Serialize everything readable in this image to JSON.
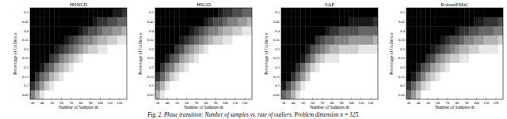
{
  "chart_data": [
    {
      "type": "heatmap",
      "title": "HSNLD",
      "x_label": "Number of Samples m",
      "y_label": "Percentage of Outliers α",
      "x": [
        30,
        35,
        40,
        45,
        50,
        55,
        60,
        65,
        70,
        75,
        80,
        85,
        90,
        95,
        100,
        105,
        110,
        115,
        120,
        125
      ],
      "y": [
        0.05,
        0.1,
        0.15,
        0.2,
        0.25,
        0.3,
        0.35,
        0.4,
        0.45,
        0.5
      ],
      "xlim": [
        27.5,
        127.5
      ],
      "ylim": [
        0.025,
        0.525
      ],
      "zlim": [
        0,
        1
      ],
      "xticks": [
        30,
        40,
        50,
        60,
        70,
        80,
        90,
        100,
        110,
        120
      ],
      "yticks": [
        0.05,
        0.1,
        0.15,
        0.2,
        0.25,
        0.3,
        0.35,
        0.4,
        0.45,
        0.5
      ],
      "cells": [
        [
          0.5,
          0.7,
          0.9,
          1,
          1,
          1,
          1,
          1,
          1,
          1,
          1,
          1,
          1,
          1,
          1,
          1,
          1,
          1,
          1,
          1
        ],
        [
          0.2,
          0.4,
          0.6,
          0.8,
          0.9,
          1,
          1,
          1,
          1,
          1,
          1,
          1,
          1,
          1,
          1,
          1,
          1,
          1,
          1,
          1
        ],
        [
          0,
          0.2,
          0.4,
          0.5,
          0.7,
          0.8,
          0.9,
          1,
          1,
          1,
          1,
          1,
          1,
          1,
          1,
          1,
          1,
          1,
          1,
          1
        ],
        [
          0,
          0,
          0.1,
          0.3,
          0.4,
          0.6,
          0.7,
          0.8,
          0.9,
          1,
          1,
          1,
          1,
          1,
          1,
          1,
          1,
          1,
          1,
          1
        ],
        [
          0,
          0,
          0,
          0,
          0.2,
          0.3,
          0.5,
          0.6,
          0.7,
          0.8,
          0.9,
          1,
          1,
          1,
          1,
          1,
          1,
          1,
          1,
          1
        ],
        [
          0,
          0,
          0,
          0,
          0,
          0.1,
          0.2,
          0.3,
          0.4,
          0.5,
          0.6,
          0.7,
          0.8,
          0.8,
          0.9,
          0.9,
          1,
          1,
          1,
          1
        ],
        [
          0,
          0,
          0,
          0,
          0,
          0,
          0,
          0.1,
          0.2,
          0.3,
          0.4,
          0.5,
          0.5,
          0.6,
          0.7,
          0.7,
          0.8,
          0.8,
          0.9,
          0.9
        ],
        [
          0,
          0,
          0,
          0,
          0,
          0,
          0,
          0,
          0,
          0,
          0.1,
          0.2,
          0.3,
          0.3,
          0.4,
          0.5,
          0.5,
          0.6,
          0.6,
          0.7
        ],
        [
          0,
          0,
          0,
          0,
          0,
          0,
          0,
          0,
          0,
          0,
          0,
          0,
          0,
          0.1,
          0.2,
          0.2,
          0.3,
          0.3,
          0.4,
          0.4
        ],
        [
          0,
          0,
          0,
          0,
          0,
          0,
          0,
          0,
          0,
          0,
          0,
          0,
          0,
          0,
          0,
          0,
          0,
          0.1,
          0.1,
          0.2
        ]
      ]
    },
    {
      "type": "heatmap",
      "title": "HSGD",
      "x_label": "Number of Samples m",
      "y_label": "Percentage of Outliers α",
      "x": [
        30,
        35,
        40,
        45,
        50,
        55,
        60,
        65,
        70,
        75,
        80,
        85,
        90,
        95,
        100,
        105,
        110,
        115,
        120,
        125
      ],
      "y": [
        0.05,
        0.1,
        0.15,
        0.2,
        0.25,
        0.3,
        0.35,
        0.4,
        0.45,
        0.5
      ],
      "xlim": [
        27.5,
        127.5
      ],
      "ylim": [
        0.025,
        0.525
      ],
      "zlim": [
        0,
        1
      ],
      "xticks": [
        30,
        40,
        50,
        60,
        70,
        80,
        90,
        100,
        110,
        120
      ],
      "yticks": [
        0.05,
        0.1,
        0.15,
        0.2,
        0.25,
        0.3,
        0.35,
        0.4,
        0.45,
        0.5
      ],
      "cells": [
        [
          0.7,
          0.9,
          1,
          1,
          1,
          1,
          1,
          1,
          1,
          1,
          1,
          1,
          1,
          1,
          1,
          1,
          1,
          1,
          1,
          1
        ],
        [
          0.5,
          0.7,
          0.9,
          1,
          1,
          1,
          1,
          1,
          1,
          1,
          1,
          1,
          1,
          1,
          1,
          1,
          1,
          1,
          1,
          1
        ],
        [
          0.2,
          0.4,
          0.6,
          0.8,
          0.9,
          1,
          1,
          1,
          1,
          1,
          1,
          1,
          1,
          1,
          1,
          1,
          1,
          1,
          1,
          1
        ],
        [
          0,
          0.2,
          0.4,
          0.5,
          0.7,
          0.8,
          0.9,
          1,
          1,
          1,
          1,
          1,
          1,
          1,
          1,
          1,
          1,
          1,
          1,
          1
        ],
        [
          0,
          0,
          0.1,
          0.3,
          0.4,
          0.6,
          0.7,
          0.8,
          0.9,
          1,
          1,
          1,
          1,
          1,
          1,
          1,
          1,
          1,
          1,
          1
        ],
        [
          0,
          0,
          0,
          0,
          0.2,
          0.3,
          0.5,
          0.6,
          0.7,
          0.8,
          0.9,
          1,
          1,
          1,
          1,
          1,
          1,
          1,
          1,
          1
        ],
        [
          0,
          0,
          0,
          0,
          0,
          0.1,
          0.2,
          0.3,
          0.4,
          0.5,
          0.6,
          0.7,
          0.8,
          0.8,
          0.9,
          0.9,
          1,
          1,
          1,
          1
        ],
        [
          0,
          0,
          0,
          0,
          0,
          0,
          0,
          0.1,
          0.2,
          0.3,
          0.4,
          0.5,
          0.5,
          0.6,
          0.7,
          0.7,
          0.8,
          0.8,
          0.9,
          0.9
        ],
        [
          0,
          0,
          0,
          0,
          0,
          0,
          0,
          0,
          0,
          0,
          0.1,
          0.2,
          0.3,
          0.3,
          0.4,
          0.5,
          0.5,
          0.6,
          0.6,
          0.7
        ],
        [
          0,
          0,
          0,
          0,
          0,
          0,
          0,
          0,
          0,
          0,
          0,
          0,
          0,
          0.1,
          0.2,
          0.2,
          0.3,
          0.3,
          0.4,
          0.4
        ]
      ]
    },
    {
      "type": "heatmap",
      "title": "SAP",
      "x_label": "Number of Samples m",
      "y_label": "Percentage of Outliers α",
      "x": [
        30,
        35,
        40,
        45,
        50,
        55,
        60,
        65,
        70,
        75,
        80,
        85,
        90,
        95,
        100,
        105,
        110,
        115,
        120,
        125
      ],
      "y": [
        0.05,
        0.1,
        0.15,
        0.2,
        0.25,
        0.3,
        0.35,
        0.4,
        0.45,
        0.5
      ],
      "xlim": [
        27.5,
        127.5
      ],
      "ylim": [
        0.025,
        0.525
      ],
      "zlim": [
        0,
        1
      ],
      "xticks": [
        30,
        40,
        50,
        60,
        70,
        80,
        90,
        100,
        110,
        120
      ],
      "yticks": [
        0.05,
        0.1,
        0.15,
        0.2,
        0.25,
        0.3,
        0.35,
        0.4,
        0.45,
        0.5
      ],
      "cells": [
        [
          0.4,
          0.5,
          0.7,
          0.9,
          1,
          1,
          1,
          1,
          1,
          1,
          1,
          1,
          1,
          1,
          1,
          1,
          1,
          1,
          1,
          1
        ],
        [
          0.1,
          0.3,
          0.5,
          0.7,
          0.9,
          1,
          1,
          1,
          1,
          1,
          1,
          1,
          1,
          1,
          1,
          1,
          1,
          1,
          1,
          1
        ],
        [
          0,
          0,
          0.2,
          0.4,
          0.6,
          0.8,
          1,
          1,
          1,
          1,
          1,
          1,
          1,
          1,
          1,
          1,
          1,
          1,
          1,
          1
        ],
        [
          0,
          0,
          0,
          0.2,
          0.4,
          0.6,
          0.8,
          0.9,
          1,
          1,
          1,
          1,
          1,
          1,
          1,
          1,
          1,
          1,
          1,
          1
        ],
        [
          0,
          0,
          0,
          0,
          0.1,
          0.3,
          0.5,
          0.7,
          0.8,
          0.9,
          0.9,
          0.9,
          1,
          1,
          1,
          1,
          1,
          1,
          1,
          1
        ],
        [
          0,
          0,
          0,
          0,
          0,
          0.1,
          0.3,
          0.4,
          0.5,
          0.6,
          0.7,
          0.7,
          0.8,
          0.8,
          0.8,
          0.8,
          0.9,
          0.9,
          0.9,
          0.9
        ],
        [
          0,
          0,
          0,
          0,
          0,
          0,
          0,
          0.2,
          0.3,
          0.4,
          0.4,
          0.5,
          0.5,
          0.5,
          0.6,
          0.6,
          0.6,
          0.6,
          0.6,
          0.7
        ],
        [
          0,
          0,
          0,
          0,
          0,
          0,
          0,
          0,
          0,
          0.1,
          0.2,
          0.2,
          0.3,
          0.3,
          0.3,
          0.3,
          0.4,
          0.4,
          0.4,
          0.4
        ],
        [
          0,
          0,
          0,
          0,
          0,
          0,
          0,
          0,
          0,
          0,
          0,
          0,
          0,
          0,
          0.1,
          0.1,
          0.1,
          0.1,
          0.1,
          0.2
        ],
        [
          0,
          0,
          0,
          0,
          0,
          0,
          0,
          0,
          0,
          0,
          0,
          0,
          0,
          0,
          0,
          0,
          0,
          0,
          0,
          0
        ]
      ]
    },
    {
      "type": "heatmap",
      "title": "RobustEMaC",
      "x_label": "Number of Samples m",
      "y_label": "Percentage of Outliers α",
      "x": [
        30,
        35,
        40,
        45,
        50,
        55,
        60,
        65,
        70,
        75,
        80,
        85,
        90,
        95,
        100,
        105,
        110,
        115,
        120,
        125
      ],
      "y": [
        0.05,
        0.1,
        0.15,
        0.2,
        0.25,
        0.3,
        0.35,
        0.4,
        0.45,
        0.5
      ],
      "xlim": [
        27.5,
        127.5
      ],
      "ylim": [
        0.025,
        0.525
      ],
      "zlim": [
        0,
        1
      ],
      "xticks": [
        30,
        40,
        50,
        60,
        70,
        80,
        90,
        100,
        110,
        120
      ],
      "yticks": [
        0.05,
        0.1,
        0.15,
        0.2,
        0.25,
        0.3,
        0.35,
        0.4,
        0.45,
        0.5
      ],
      "cells": [
        [
          0.4,
          0.6,
          0.8,
          1,
          1,
          1,
          1,
          1,
          1,
          1,
          1,
          1,
          1,
          1,
          1,
          1,
          1,
          1,
          1,
          1
        ],
        [
          0.2,
          0.4,
          0.6,
          0.8,
          0.9,
          1,
          1,
          1,
          1,
          1,
          1,
          1,
          1,
          1,
          1,
          1,
          1,
          1,
          1,
          1
        ],
        [
          0,
          0.1,
          0.3,
          0.5,
          0.7,
          0.8,
          0.9,
          1,
          1,
          1,
          1,
          1,
          1,
          1,
          1,
          1,
          1,
          1,
          1,
          1
        ],
        [
          0,
          0,
          0.1,
          0.3,
          0.4,
          0.6,
          0.7,
          0.8,
          0.9,
          1,
          1,
          1,
          1,
          1,
          1,
          1,
          1,
          1,
          1,
          1
        ],
        [
          0,
          0,
          0,
          0,
          0.2,
          0.3,
          0.5,
          0.6,
          0.7,
          0.8,
          0.8,
          0.9,
          0.9,
          1,
          1,
          1,
          1,
          1,
          1,
          1
        ],
        [
          0,
          0,
          0,
          0,
          0,
          0.1,
          0.2,
          0.3,
          0.4,
          0.5,
          0.6,
          0.7,
          0.7,
          0.8,
          0.8,
          0.9,
          0.9,
          0.9,
          0.9,
          1
        ],
        [
          0,
          0,
          0,
          0,
          0,
          0,
          0,
          0.1,
          0.2,
          0.3,
          0.3,
          0.4,
          0.5,
          0.5,
          0.6,
          0.6,
          0.7,
          0.7,
          0.7,
          0.8
        ],
        [
          0,
          0,
          0,
          0,
          0,
          0,
          0,
          0,
          0,
          0,
          0.1,
          0.2,
          0.2,
          0.3,
          0.3,
          0.4,
          0.4,
          0.4,
          0.5,
          0.5
        ],
        [
          0,
          0,
          0,
          0,
          0,
          0,
          0,
          0,
          0,
          0,
          0,
          0,
          0,
          0,
          0.1,
          0.1,
          0.2,
          0.2,
          0.2,
          0.3
        ],
        [
          0,
          0,
          0,
          0,
          0,
          0,
          0,
          0,
          0,
          0,
          0,
          0,
          0,
          0,
          0,
          0,
          0,
          0,
          0,
          0
        ]
      ]
    }
  ],
  "caption": "Fig. 2. Phase transition: Number of samples vs. rate of outliers. Problem dimension n = 125."
}
